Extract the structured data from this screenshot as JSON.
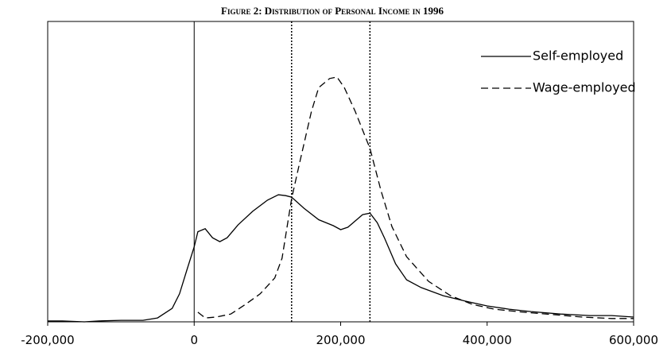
{
  "chart_data": {
    "type": "line",
    "title": "Figure 2: Distribution of Personal Income in 1996",
    "xlim": [
      -200000,
      600000
    ],
    "xticks": [
      {
        "value": -200000,
        "label": "-200,000"
      },
      0,
      {
        "value": 200000,
        "label": "200,000"
      },
      {
        "value": 400000,
        "label": "400,000"
      },
      {
        "value": 600000,
        "label": "600,000"
      }
    ],
    "ylim": [
      0,
      100
    ],
    "vlines": [
      133000,
      240000
    ],
    "legend": "top-right",
    "series": [
      {
        "name": "Self-employed",
        "color": "#000000",
        "dash": "solid",
        "x": [
          -200000,
          -180000,
          -150000,
          -130000,
          -100000,
          -70000,
          -50000,
          -30000,
          -20000,
          -10000,
          0,
          5000,
          15000,
          25000,
          35000,
          45000,
          60000,
          80000,
          100000,
          115000,
          125000,
          133000,
          150000,
          170000,
          190000,
          200000,
          210000,
          220000,
          230000,
          240000,
          250000,
          260000,
          275000,
          290000,
          310000,
          340000,
          370000,
          400000,
          430000,
          460000,
          500000,
          540000,
          570000,
          600000
        ],
        "values": [
          0.3,
          0.3,
          0,
          0.3,
          0.5,
          0.5,
          1.3,
          4.5,
          9.3,
          17.2,
          25,
          30,
          31,
          28,
          26.7,
          28,
          32.3,
          36.8,
          40.5,
          42.3,
          42,
          41.5,
          37.8,
          34,
          32,
          30.7,
          31.5,
          33.6,
          35.7,
          36.2,
          33,
          27.8,
          19.3,
          14,
          11.4,
          8.7,
          6.9,
          5.3,
          4.2,
          3.4,
          2.6,
          2.1,
          2.1,
          1.6
        ]
      },
      {
        "name": "Wage-employed",
        "color": "#000000",
        "dash": "dashed",
        "x": [
          5000,
          15000,
          30000,
          50000,
          70000,
          90000,
          110000,
          120000,
          133000,
          145000,
          160000,
          170000,
          185000,
          195000,
          205000,
          220000,
          240000,
          255000,
          270000,
          290000,
          320000,
          350000,
          380000,
          410000,
          450000,
          490000,
          530000,
          570000,
          600000
        ],
        "values": [
          3.2,
          1.3,
          1.6,
          2.6,
          5.8,
          9.3,
          14.6,
          21.2,
          41,
          54,
          70,
          78,
          81,
          81.5,
          78,
          70,
          57.7,
          43.7,
          31.7,
          21.7,
          13.5,
          8.7,
          5.8,
          4.2,
          3.2,
          2.4,
          1.6,
          1.1,
          1.1
        ]
      }
    ]
  }
}
